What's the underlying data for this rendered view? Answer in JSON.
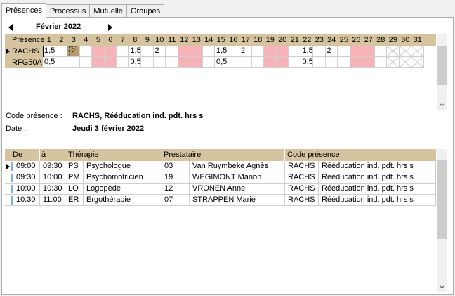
{
  "tabs": [
    {
      "label": "Présences",
      "active": true
    },
    {
      "label": "Processus",
      "active": false
    },
    {
      "label": "Mutuelle",
      "active": false
    },
    {
      "label": "Groupes",
      "active": false
    }
  ],
  "calendar": {
    "month_title": "Février 2022",
    "row_header_label": "Présence",
    "days": [
      "1",
      "2",
      "3",
      "4",
      "5",
      "6",
      "7",
      "8",
      "9",
      "10",
      "11",
      "12",
      "13",
      "14",
      "15",
      "16",
      "17",
      "18",
      "19",
      "20",
      "21",
      "22",
      "23",
      "24",
      "25",
      "26",
      "27",
      "28",
      "29",
      "30",
      "31"
    ],
    "weekend_days": [
      5,
      6,
      12,
      13,
      19,
      20,
      26,
      27
    ],
    "invalid_days": [
      29,
      30,
      31
    ],
    "selected_day": 3,
    "rows": [
      {
        "code": "RACHS",
        "values": [
          "1,5",
          "",
          "2",
          "",
          "",
          "",
          "",
          "1,5",
          "",
          "2",
          "",
          "",
          "",
          "",
          "1,5",
          "",
          "2",
          "",
          "",
          "",
          "",
          "1,5",
          "",
          "2",
          "",
          "",
          "",
          "",
          "",
          "",
          ""
        ]
      },
      {
        "code": "RFG50A",
        "values": [
          "0,5",
          "",
          "",
          "",
          "",
          "",
          "",
          "0,5",
          "",
          "",
          "",
          "",
          "",
          "",
          "0,5",
          "",
          "",
          "",
          "",
          "",
          "",
          "0,5",
          "",
          "",
          "",
          "",
          "",
          "",
          "",
          "",
          ""
        ]
      }
    ]
  },
  "info": {
    "code_label": "Code présence :",
    "code_value": "RACHS, Rééducation ind. pdt. hrs s",
    "date_label": "Date :",
    "date_value": "Jeudi 3 février 2022"
  },
  "schedule": {
    "headers": {
      "de": "De",
      "a": "à",
      "therapie": "Thérapie",
      "prestataire": "Prestataire",
      "code_presence": "Code présence"
    },
    "rows": [
      {
        "de": "09:00",
        "a": "09:30",
        "ther_code": "PS",
        "ther_name": "Psychologue",
        "prest_id": "03",
        "prest_name": "Van Ruymbeke Agnès",
        "code": "RACHS",
        "code_desc": "Rééducation ind. pdt. hrs s",
        "current": true
      },
      {
        "de": "09:30",
        "a": "10:00",
        "ther_code": "PM",
        "ther_name": "Psychomotricien",
        "prest_id": "19",
        "prest_name": "WEGIMONT Manon",
        "code": "RACHS",
        "code_desc": "Rééducation ind. pdt. hrs s",
        "current": false
      },
      {
        "de": "10:00",
        "a": "10:30",
        "ther_code": "LO",
        "ther_name": "Logopède",
        "prest_id": "12",
        "prest_name": "VRONEN Anne",
        "code": "RACHS",
        "code_desc": "Rééducation ind. pdt. hrs s",
        "current": false
      },
      {
        "de": "10:30",
        "a": "11:00",
        "ther_code": "ER",
        "ther_name": "Ergothérapie",
        "prest_id": "07",
        "prest_name": "STRAPPEN Marie",
        "code": "RACHS",
        "code_desc": "Rééducation ind. pdt. hrs s",
        "current": false
      }
    ]
  },
  "colors": {
    "header_bg": "#d6c4a0",
    "weekend": "#f6b3b8",
    "selected": "#b89b6c",
    "row_stripe": "#7fb0e0"
  }
}
